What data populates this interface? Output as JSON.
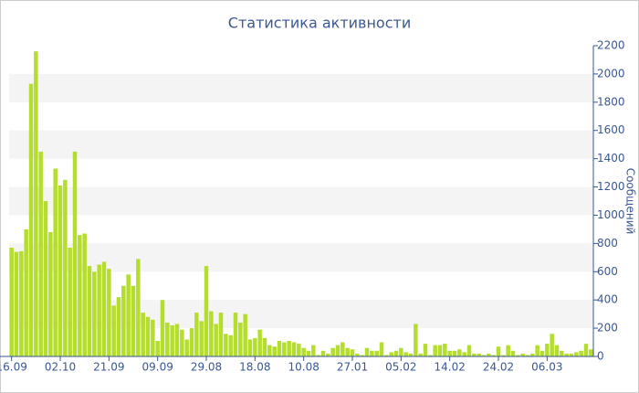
{
  "chart_data": {
    "type": "bar",
    "title": "Статистика активности",
    "y_label": "Сообщений",
    "categories": [
      "16.09",
      null,
      null,
      null,
      null,
      null,
      null,
      null,
      null,
      null,
      "02.10",
      null,
      null,
      null,
      null,
      null,
      null,
      null,
      null,
      null,
      "21.09",
      null,
      null,
      null,
      null,
      null,
      null,
      null,
      null,
      null,
      "09.09",
      null,
      null,
      null,
      null,
      null,
      null,
      null,
      null,
      null,
      "29.08",
      null,
      null,
      null,
      null,
      null,
      null,
      null,
      null,
      null,
      "18.08",
      null,
      null,
      null,
      null,
      null,
      null,
      null,
      null,
      null,
      "10.08",
      null,
      null,
      null,
      null,
      null,
      null,
      null,
      null,
      null,
      "27.01",
      null,
      null,
      null,
      null,
      null,
      null,
      null,
      null,
      null,
      "05.02",
      null,
      null,
      null,
      null,
      null,
      null,
      null,
      null,
      null,
      "14.02",
      null,
      null,
      null,
      null,
      null,
      null,
      null,
      null,
      null,
      "24.02",
      null,
      null,
      null,
      null,
      null,
      null,
      null,
      null,
      null,
      "06.03",
      null,
      null,
      null,
      null,
      null,
      null,
      null,
      null,
      null
    ],
    "values": [
      770,
      740,
      745,
      900,
      1930,
      2160,
      1450,
      1100,
      880,
      1330,
      1210,
      1250,
      770,
      1450,
      860,
      870,
      640,
      600,
      650,
      670,
      620,
      360,
      420,
      500,
      580,
      500,
      690,
      310,
      280,
      260,
      110,
      400,
      240,
      220,
      230,
      190,
      120,
      200,
      310,
      250,
      640,
      320,
      230,
      310,
      160,
      150,
      310,
      240,
      300,
      120,
      130,
      190,
      130,
      80,
      70,
      110,
      100,
      110,
      100,
      90,
      60,
      40,
      80,
      10,
      40,
      20,
      60,
      80,
      100,
      60,
      50,
      20,
      10,
      60,
      40,
      40,
      100,
      10,
      30,
      40,
      60,
      30,
      20,
      230,
      20,
      90,
      10,
      80,
      80,
      90,
      40,
      40,
      50,
      30,
      80,
      20,
      20,
      10,
      20,
      10,
      70,
      10,
      80,
      40,
      10,
      20,
      10,
      20,
      80,
      40,
      90,
      160,
      80,
      40,
      20,
      20,
      30,
      40,
      90,
      50
    ],
    "color": "#b5dd2d",
    "ylim": [
      0,
      2200
    ],
    "yticks": [
      0,
      200,
      400,
      600,
      800,
      1000,
      1200,
      1400,
      1600,
      1800,
      2000,
      2200
    ],
    "grid": "bands"
  }
}
